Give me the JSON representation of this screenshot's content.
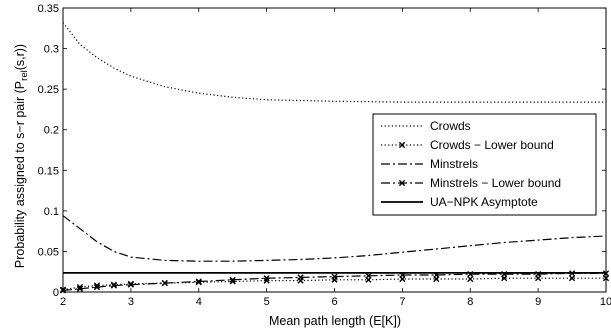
{
  "chart_data": {
    "type": "line",
    "title": "",
    "xlabel": "Mean path length (E[K])",
    "ylabel": "Probability assigned to s−r pair (P",
    "ylabel_sub": "rel",
    "ylabel_tail": "(s,r))",
    "xlim": [
      2,
      10
    ],
    "ylim": [
      0,
      0.35
    ],
    "x_ticks": [
      "2",
      "3",
      "4",
      "5",
      "6",
      "7",
      "8",
      "9",
      "10"
    ],
    "y_ticks": [
      "0",
      "0.05",
      "0.1",
      "0.15",
      "0.2",
      "0.25",
      "0.3",
      "0.35"
    ],
    "grid": false,
    "legend_position": "center-right",
    "series": [
      {
        "name": "Crowds",
        "style": "dotted",
        "marker": "none",
        "x": [
          2,
          2.25,
          2.5,
          2.75,
          3,
          3.5,
          4,
          4.5,
          5,
          5.5,
          6,
          7,
          8,
          9,
          10
        ],
        "y": [
          0.332,
          0.305,
          0.289,
          0.276,
          0.266,
          0.253,
          0.245,
          0.24,
          0.237,
          0.236,
          0.235,
          0.234,
          0.234,
          0.234,
          0.234
        ]
      },
      {
        "name": "Crowds − Lower bound",
        "style": "dotted",
        "marker": "x",
        "x": [
          2,
          2.25,
          2.5,
          2.75,
          3,
          3.5,
          4,
          4.5,
          5,
          5.5,
          6,
          6.5,
          7,
          7.5,
          8,
          8.5,
          9,
          9.5,
          10
        ],
        "y": [
          0.003,
          0.006,
          0.008,
          0.009,
          0.01,
          0.011,
          0.012,
          0.013,
          0.014,
          0.014,
          0.015,
          0.015,
          0.016,
          0.016,
          0.016,
          0.017,
          0.017,
          0.017,
          0.017
        ]
      },
      {
        "name": "Minstrels",
        "style": "dashdot",
        "marker": "none",
        "x": [
          2,
          2.25,
          2.5,
          2.75,
          3,
          3.5,
          4,
          4.5,
          5,
          5.5,
          6,
          6.5,
          7,
          7.5,
          8,
          8.5,
          9,
          9.5,
          10
        ],
        "y": [
          0.094,
          0.078,
          0.062,
          0.05,
          0.043,
          0.039,
          0.038,
          0.038,
          0.039,
          0.04,
          0.042,
          0.045,
          0.049,
          0.053,
          0.057,
          0.061,
          0.064,
          0.067,
          0.069
        ]
      },
      {
        "name": "Minstrels − Lower bound",
        "style": "dashdot",
        "marker": "x",
        "x": [
          2,
          2.25,
          2.5,
          2.75,
          3,
          3.5,
          4,
          4.5,
          5,
          5.5,
          6,
          6.5,
          7,
          7.5,
          8,
          8.5,
          9,
          9.5,
          10
        ],
        "y": [
          0.002,
          0.004,
          0.006,
          0.008,
          0.009,
          0.011,
          0.013,
          0.015,
          0.017,
          0.018,
          0.019,
          0.02,
          0.021,
          0.021,
          0.022,
          0.022,
          0.022,
          0.023,
          0.023
        ]
      },
      {
        "name": "UA−NPK Asymptote",
        "style": "solid",
        "marker": "none",
        "x": [
          2,
          10
        ],
        "y": [
          0.0235,
          0.0235
        ]
      }
    ]
  }
}
